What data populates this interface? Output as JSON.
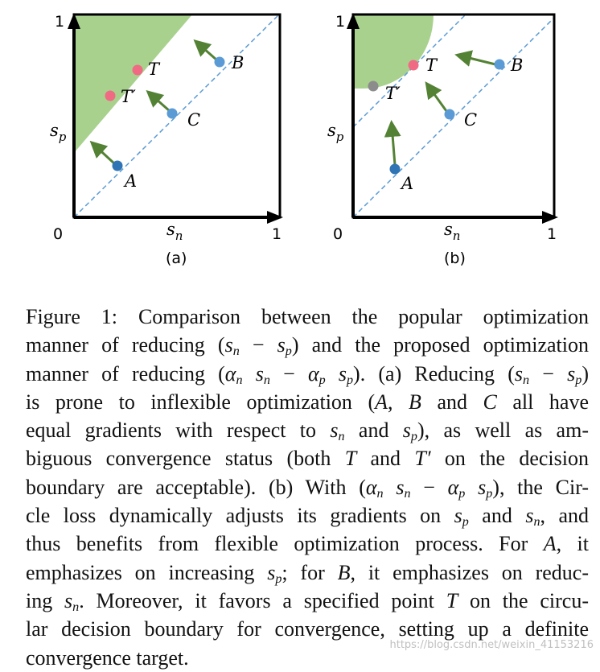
{
  "panels": [
    {
      "caption": "(a)",
      "origin": "0",
      "x_tick": "1",
      "y_tick": "1",
      "x_label_base": "s",
      "x_label_sub": "n",
      "y_label_base": "s",
      "y_label_sub": "p",
      "points": {
        "A": {
          "label": "A",
          "color": "#2f75b5"
        },
        "B": {
          "label": "B",
          "color": "#5b9bd5"
        },
        "C": {
          "label": "C",
          "color": "#5b9bd5"
        },
        "T": {
          "label": "T",
          "color": "#f06a84"
        },
        "T_prime": {
          "label": "T′",
          "color": "#f06a84"
        }
      }
    },
    {
      "caption": "(b)",
      "origin": "0",
      "x_tick": "1",
      "y_tick": "1",
      "x_label_base": "s",
      "x_label_sub": "n",
      "y_label_base": "s",
      "y_label_sub": "p",
      "points": {
        "A": {
          "label": "A",
          "color": "#2f75b5"
        },
        "B": {
          "label": "B",
          "color": "#5b9bd5"
        },
        "C": {
          "label": "C",
          "color": "#5b9bd5"
        },
        "T": {
          "label": "T",
          "color": "#f06a84"
        },
        "T_prime": {
          "label": "T′",
          "color": "#8c8c8c"
        }
      }
    }
  ],
  "colors": {
    "region_fill": "#a9d18e",
    "arrow": "#548235",
    "dashed_line": "#5b9bd5",
    "axis": "#000000"
  },
  "caption_lines": [
    "Figure 1: Comparison between the popular optimization",
    "manner of reducing (s_n − s_p) and the proposed optimization",
    "manner of reducing (α_n s_n − α_p s_p). (a) Reducing (s_n − s_p)",
    "is prone to inflexible optimization (A, B and C all have",
    "equal gradients with respect to s_n and s_p), as well as am-",
    "biguous convergence status (both T and T′ on the decision",
    "boundary are acceptable). (b) With (α_n s_n − α_p s_p), the Cir-",
    "cle loss dynamically adjusts its gradients on s_p and s_n, and",
    "thus benefits from flexible optimization process. For A, it",
    "emphasizes on increasing s_p; for B, it emphasizes on reduc-",
    "ing s_n. Moreover, it favors a specified point T on the circu-",
    "lar decision boundary for convergence, setting up a definite",
    "convergence target."
  ],
  "watermark": "https://blog.csdn.net/weixin_41153216"
}
